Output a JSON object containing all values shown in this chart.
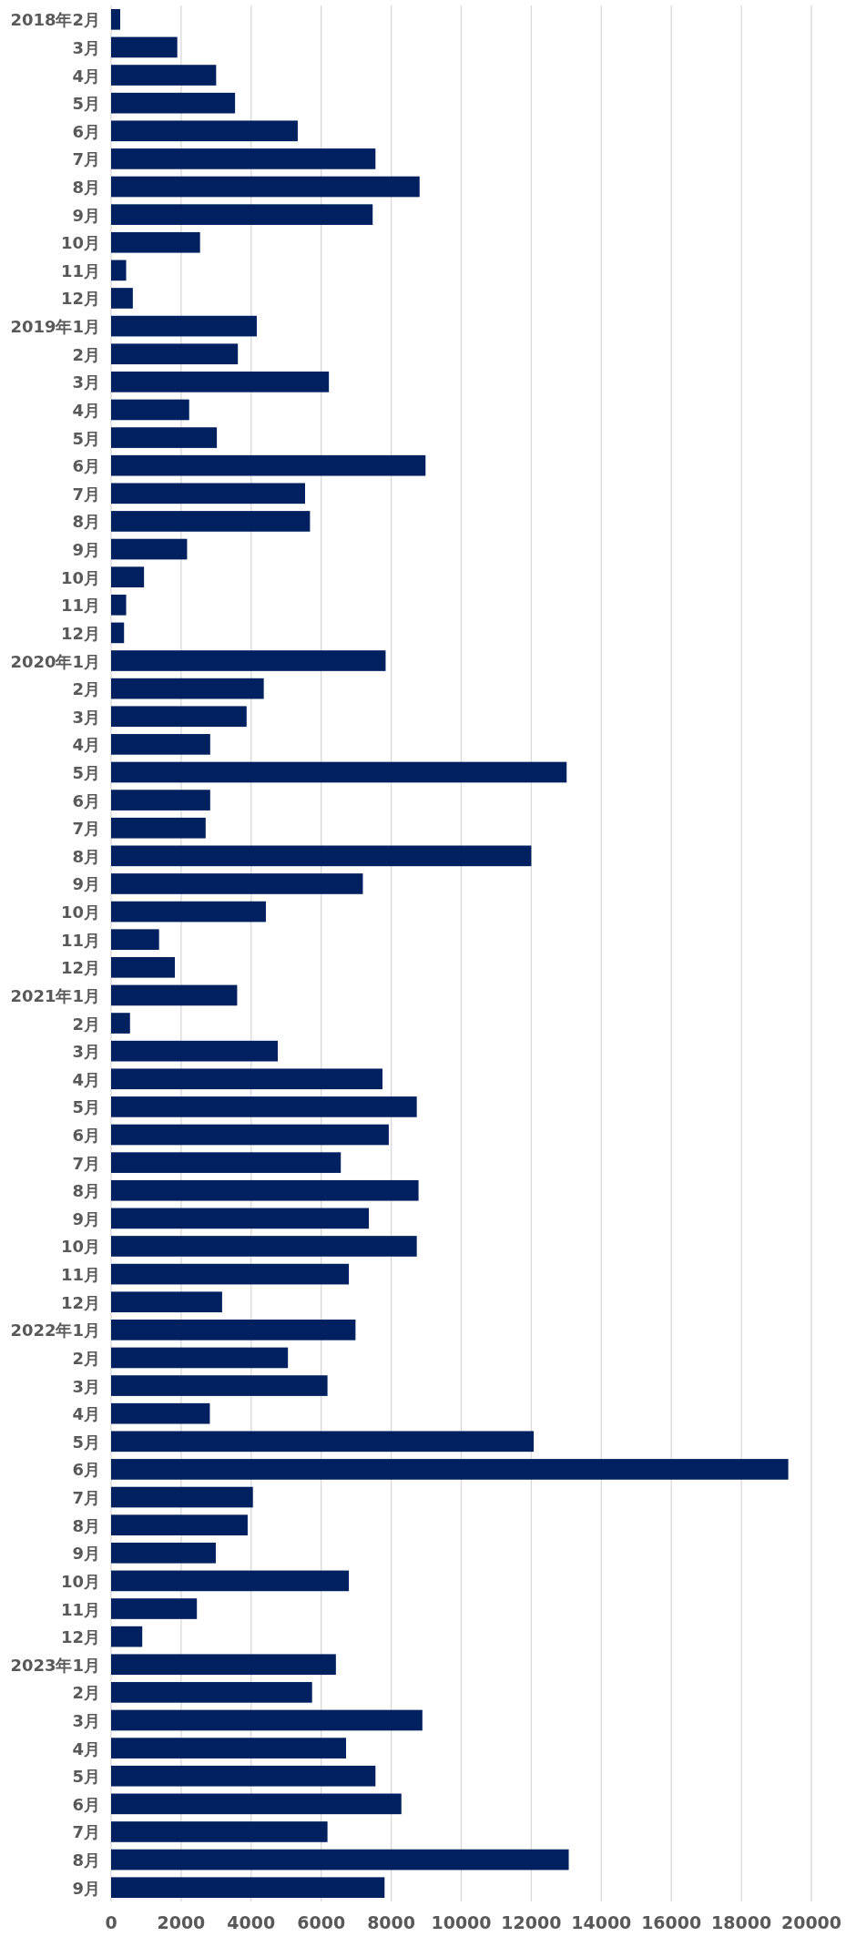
{
  "chart_data": {
    "type": "bar",
    "orientation": "horizontal",
    "color": "#002060",
    "grid": "x",
    "categories": [
      "2018年2月",
      "3月",
      "4月",
      "5月",
      "6月",
      "7月",
      "8月",
      "9月",
      "10月",
      "11月",
      "12月",
      "2019年1月",
      "2月",
      "3月",
      "4月",
      "5月",
      "6月",
      "7月",
      "8月",
      "9月",
      "10月",
      "11月",
      "12月",
      "2020年1月",
      "2月",
      "3月",
      "4月",
      "5月",
      "6月",
      "7月",
      "8月",
      "9月",
      "10月",
      "11月",
      "12月",
      "2021年1月",
      "2月",
      "3月",
      "4月",
      "5月",
      "6月",
      "7月",
      "8月",
      "9月",
      "10月",
      "11月",
      "12月",
      "2022年1月",
      "2月",
      "3月",
      "4月",
      "5月",
      "6月",
      "7月",
      "8月",
      "9月",
      "10月",
      "11月",
      "12月",
      "2023年1月",
      "2月",
      "3月",
      "4月",
      "5月",
      "6月",
      "7月",
      "8月",
      "9月"
    ],
    "values": [
      260,
      1890,
      3000,
      3540,
      5330,
      7550,
      8810,
      7470,
      2540,
      430,
      620,
      4160,
      3620,
      6220,
      2230,
      3020,
      8980,
      5540,
      5680,
      2170,
      940,
      430,
      370,
      7840,
      4360,
      3870,
      2830,
      13010,
      2830,
      2700,
      12000,
      7190,
      4420,
      1370,
      1820,
      3600,
      540,
      4760,
      7750,
      8730,
      7930,
      6560,
      8780,
      7360,
      8730,
      6790,
      3170,
      6980,
      5050,
      6180,
      2820,
      12070,
      19340,
      4050,
      3900,
      2990,
      6790,
      2450,
      890,
      6420,
      5740,
      8890,
      6710,
      7550,
      8290,
      6180,
      13070,
      7810
    ],
    "xlim": [
      0,
      20000
    ],
    "xticks": [
      0,
      2000,
      4000,
      6000,
      8000,
      10000,
      12000,
      14000,
      16000,
      18000,
      20000
    ]
  }
}
